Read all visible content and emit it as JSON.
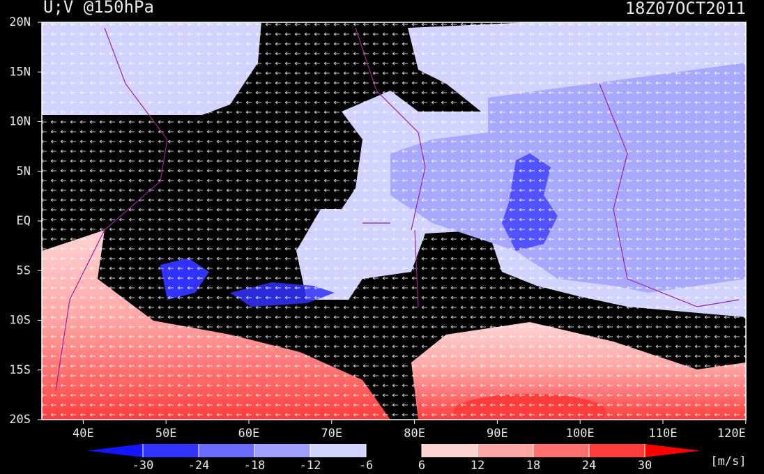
{
  "header": {
    "title": "U;V @150hPa",
    "time": "18Z07OCT2011"
  },
  "map": {
    "lat_labels": [
      "20N",
      "15N",
      "10N",
      "5N",
      "EQ",
      "5S",
      "10S",
      "15S",
      "20S"
    ],
    "lon_labels": [
      "40E",
      "50E",
      "60E",
      "70E",
      "80E",
      "90E",
      "100E",
      "110E",
      "120E"
    ]
  },
  "colorbar": {
    "ticks": [
      -30,
      -24,
      -18,
      -12,
      -6,
      6,
      12,
      18,
      24,
      30
    ],
    "colors": [
      "#1414ff",
      "#3232ff",
      "#6a6aff",
      "#a0a0ff",
      "#d2d2ff",
      "#000000",
      "#ffd2d2",
      "#ffa8a8",
      "#ff7070",
      "#ff3c3c",
      "#ff0000"
    ],
    "unit": "[m/s]"
  }
}
